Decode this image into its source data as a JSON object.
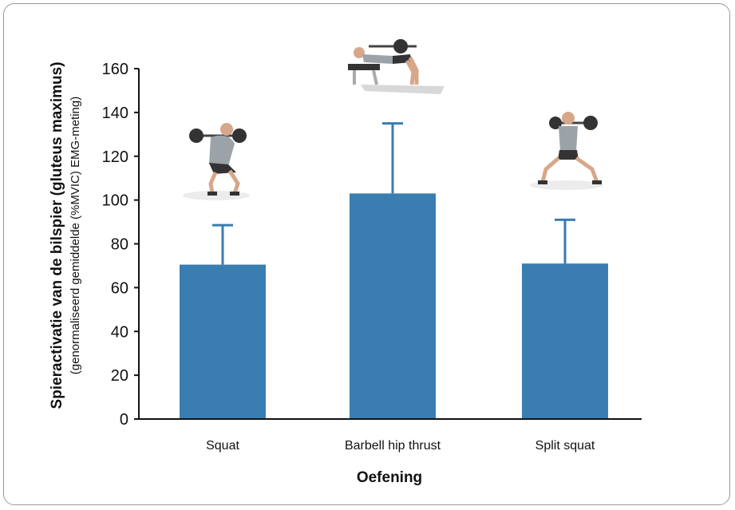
{
  "chart_data": {
    "type": "bar",
    "categories": [
      "Squat",
      "Barbell hip thrust",
      "Split squat"
    ],
    "values": [
      70.5,
      103,
      71
    ],
    "error_upper": [
      88.5,
      135,
      91
    ],
    "icons": [
      "barbell-squat-figure-icon",
      "barbell-hip-thrust-figure-icon",
      "split-squat-figure-icon"
    ],
    "xlabel": "Oefening",
    "ylabel": "Spieractivatie van de bilspier (gluteus maximus)",
    "ylabel_sub": "(genormaliseerd gemiddelde (%MVIC) EMG-meting)",
    "ylim": [
      0,
      160
    ],
    "yticks": [
      0,
      20,
      40,
      60,
      80,
      100,
      120,
      140,
      160
    ],
    "grid": false,
    "bar_color": "#3a7db0",
    "axis_color": "#111111"
  }
}
